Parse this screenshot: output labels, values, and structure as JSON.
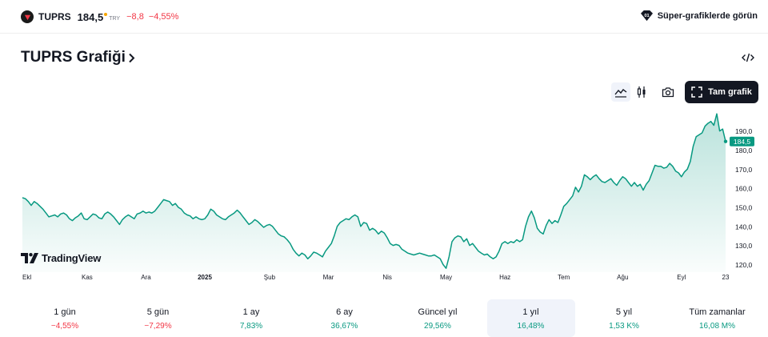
{
  "header": {
    "symbol": "TUPRS",
    "price": "184,5",
    "currency": "TRY",
    "change": "−8,8",
    "change_pct": "−4,55%",
    "super_charts_label": "Süper-grafiklerde görün"
  },
  "title": "TUPRS Grafiği",
  "toolbar": {
    "full_chart_label": "Tam grafik",
    "icons": [
      "area-chart-icon",
      "candles-icon",
      "camera-icon",
      "fullscreen-icon",
      "embed-code-icon"
    ]
  },
  "chart_data": {
    "type": "area",
    "last_value_label": "184,5",
    "ylim": [
      116,
      202
    ],
    "y_ticks": [
      {
        "value": 120,
        "label": "120,0"
      },
      {
        "value": 130,
        "label": "130,0"
      },
      {
        "value": 140,
        "label": "140,0"
      },
      {
        "value": 150,
        "label": "150,0"
      },
      {
        "value": 160,
        "label": "160,0"
      },
      {
        "value": 170,
        "label": "170,0"
      },
      {
        "value": 180,
        "label": "180,0"
      },
      {
        "value": 190,
        "label": "190,0"
      }
    ],
    "x_ticks": [
      {
        "label": "Ekl",
        "bold": false
      },
      {
        "label": "Kas",
        "bold": false
      },
      {
        "label": "Ara",
        "bold": false
      },
      {
        "label": "2025",
        "bold": true
      },
      {
        "label": "Şub",
        "bold": false
      },
      {
        "label": "Mar",
        "bold": false
      },
      {
        "label": "Nis",
        "bold": false
      },
      {
        "label": "May",
        "bold": false
      },
      {
        "label": "Haz",
        "bold": false
      },
      {
        "label": "Tem",
        "bold": false
      },
      {
        "label": "Ağu",
        "bold": false
      },
      {
        "label": "Eyl",
        "bold": false
      },
      {
        "label": "23",
        "bold": false
      }
    ],
    "x_tick_index": [
      0,
      22,
      42,
      62,
      84,
      104,
      124,
      144,
      164,
      184,
      204,
      224,
      239
    ],
    "values": [
      155,
      154.5,
      153,
      151,
      153,
      152,
      150.5,
      149,
      147,
      145,
      145.5,
      146,
      145,
      146.5,
      147,
      146,
      144,
      143,
      144.5,
      145.5,
      147,
      144,
      143.5,
      145,
      146.5,
      146,
      144.5,
      144,
      146.5,
      147.5,
      146.5,
      145,
      143,
      141,
      143.5,
      145,
      146,
      145,
      144,
      146.5,
      147,
      148,
      147,
      147.5,
      147,
      148,
      150,
      152,
      154,
      153.5,
      153,
      151,
      152,
      150,
      149,
      147,
      146,
      145.5,
      144,
      145,
      144,
      143.5,
      144,
      146,
      149,
      148,
      146,
      145,
      144,
      143.5,
      145,
      146,
      147,
      148.5,
      147,
      145,
      143,
      141,
      142,
      143.5,
      142.5,
      141,
      139.5,
      140.5,
      141,
      140,
      138,
      136,
      135,
      134.5,
      133,
      131,
      128,
      126,
      124.5,
      126,
      125,
      123,
      124.5,
      126.5,
      126,
      125,
      124,
      127,
      129,
      131,
      135,
      140,
      142,
      143,
      144,
      143.5,
      145,
      146,
      145,
      140,
      142,
      141.5,
      138,
      139,
      138,
      136,
      137.5,
      136.5,
      134,
      131,
      130,
      130.5,
      130,
      128,
      127,
      126,
      125.5,
      125,
      125.5,
      126,
      125.5,
      125,
      124.5,
      124.5,
      125,
      124,
      123,
      120,
      118,
      124,
      132,
      134,
      135,
      134.5,
      132,
      133.5,
      130,
      131,
      129,
      127,
      126,
      125,
      125.5,
      124,
      123,
      124,
      127,
      131,
      132,
      131,
      132,
      131.5,
      133,
      132,
      133,
      140,
      145,
      148,
      144.5,
      139,
      137,
      136,
      140.5,
      143.5,
      141.5,
      143,
      142,
      146,
      150.5,
      152,
      154,
      156,
      160.5,
      158,
      161,
      167,
      166,
      164.5,
      166,
      167,
      165,
      163.5,
      163,
      164,
      165,
      163,
      161.5,
      164,
      166,
      165,
      163,
      161,
      163,
      161,
      162,
      159,
      162,
      164,
      168,
      172,
      171.5,
      171.5,
      170.5,
      171,
      173,
      171.5,
      169,
      168,
      166,
      168.5,
      170,
      174,
      182,
      187,
      188,
      189,
      192.5,
      194,
      195,
      193,
      199,
      190,
      191,
      184.5
    ]
  },
  "periods": [
    {
      "label": "1 gün",
      "value": "−4,55%",
      "trend": "neg",
      "active": false
    },
    {
      "label": "5 gün",
      "value": "−7,29%",
      "trend": "neg",
      "active": false
    },
    {
      "label": "1 ay",
      "value": "7,83%",
      "trend": "pos",
      "active": false
    },
    {
      "label": "6 ay",
      "value": "36,67%",
      "trend": "pos",
      "active": false
    },
    {
      "label": "Güncel yıl",
      "value": "29,56%",
      "trend": "pos",
      "active": false
    },
    {
      "label": "1 yıl",
      "value": "16,48%",
      "trend": "pos",
      "active": true
    },
    {
      "label": "5 yıl",
      "value": "1,53 K%",
      "trend": "pos",
      "active": false
    },
    {
      "label": "Tüm zamanlar",
      "value": "16,08 M%",
      "trend": "pos",
      "active": false
    }
  ],
  "colors": {
    "line": "#089981",
    "negative": "#f23645",
    "positive": "#089981",
    "dark": "#131722"
  },
  "brand": "TradingView"
}
